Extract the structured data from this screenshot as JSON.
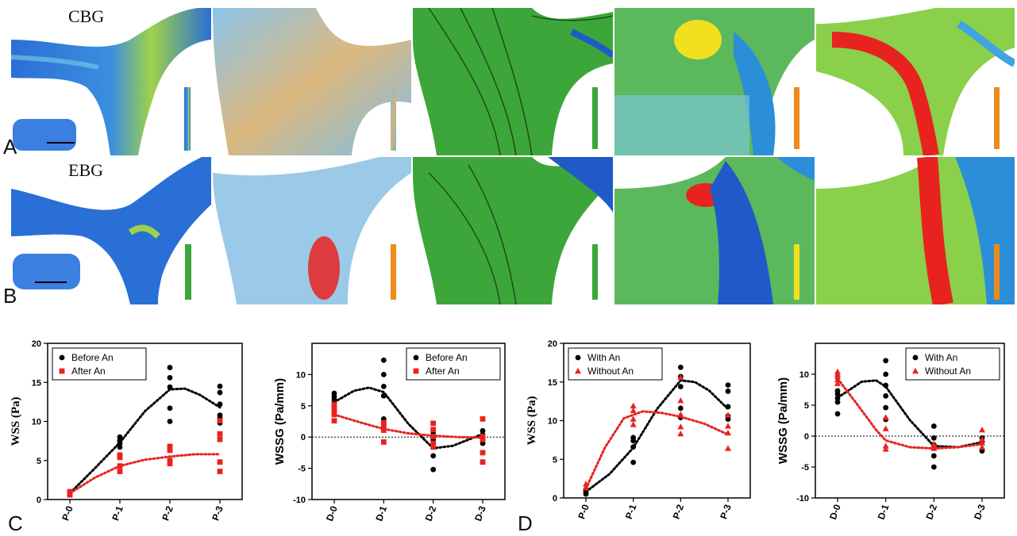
{
  "figure": {
    "panel_labels": [
      "A",
      "B",
      "C",
      "D"
    ],
    "group_titles": [
      "CBG",
      "EBG"
    ],
    "colors": {
      "black": "#000000",
      "red": "#e8231f",
      "blue": "#1f5ac8",
      "green": "#3da63a",
      "yellow": "#f0e020",
      "orange": "#f08a1a"
    }
  },
  "chart_data": [
    {
      "type": "scatter",
      "ylabel": "WSS (Pa)",
      "categories": [
        "P-0",
        "P-1",
        "P-2",
        "P-3"
      ],
      "ylim": [
        0,
        20
      ],
      "yticks": [
        0,
        5,
        10,
        15,
        20
      ],
      "legend": "top-left",
      "series": [
        {
          "name": "Before An",
          "color": "#000000",
          "marker": "circle",
          "points": [
            [
              0,
              0.6
            ],
            [
              0,
              0.8
            ],
            [
              0,
              1.0
            ],
            [
              0,
              0.7
            ],
            [
              1,
              6.7
            ],
            [
              1,
              7.2
            ],
            [
              1,
              7.5
            ],
            [
              1,
              8.0
            ],
            [
              1,
              7.6
            ],
            [
              2,
              10.0
            ],
            [
              2,
              11.7
            ],
            [
              2,
              14.4
            ],
            [
              2,
              15.6
            ],
            [
              2,
              16.9
            ],
            [
              3,
              9.8
            ],
            [
              3,
              10.5
            ],
            [
              3,
              10.8
            ],
            [
              3,
              12.2
            ],
            [
              3,
              13.7
            ],
            [
              3,
              14.5
            ]
          ],
          "trend": [
            [
              0,
              0.8
            ],
            [
              0.5,
              4.0
            ],
            [
              1,
              7.3
            ],
            [
              1.5,
              11.3
            ],
            [
              2,
              14.1
            ],
            [
              2.3,
              14.2
            ],
            [
              2.6,
              13.4
            ],
            [
              3,
              11.8
            ]
          ]
        },
        {
          "name": "After An",
          "color": "#e8231f",
          "marker": "square",
          "points": [
            [
              0,
              0.6
            ],
            [
              0,
              0.8
            ],
            [
              0,
              1.0
            ],
            [
              1,
              3.6
            ],
            [
              1,
              4.3
            ],
            [
              1,
              5.4
            ],
            [
              1,
              5.7
            ],
            [
              2,
              4.6
            ],
            [
              2,
              5.0
            ],
            [
              2,
              6.3
            ],
            [
              2,
              6.8
            ],
            [
              3,
              3.6
            ],
            [
              3,
              4.8
            ],
            [
              3,
              7.7
            ],
            [
              3,
              8.4
            ],
            [
              3,
              10.1
            ]
          ],
          "trend": [
            [
              0,
              0.8
            ],
            [
              0.5,
              2.8
            ],
            [
              1,
              4.3
            ],
            [
              1.5,
              5.1
            ],
            [
              2,
              5.5
            ],
            [
              2.5,
              5.8
            ],
            [
              3,
              5.8
            ]
          ]
        }
      ]
    },
    {
      "type": "scatter",
      "ylabel": "WSSG (Pa/mm)",
      "categories": [
        "D-0",
        "D-1",
        "D-2",
        "D-3"
      ],
      "ylim": [
        -10,
        15
      ],
      "yticks": [
        -10,
        -5,
        0,
        5,
        10
      ],
      "zero_line": true,
      "legend": "top-right",
      "series": [
        {
          "name": "Before An",
          "color": "#000000",
          "marker": "circle",
          "points": [
            [
              0,
              5.5
            ],
            [
              0,
              6.0
            ],
            [
              0,
              6.5
            ],
            [
              0,
              7.0
            ],
            [
              0,
              4.9
            ],
            [
              1,
              12.3
            ],
            [
              1,
              10.0
            ],
            [
              1,
              8.1
            ],
            [
              1,
              6.6
            ],
            [
              1,
              2.9
            ],
            [
              1,
              2.2
            ],
            [
              2,
              1.2
            ],
            [
              2,
              0.5
            ],
            [
              2,
              -0.4
            ],
            [
              2,
              -1.2
            ],
            [
              2,
              -3.0
            ],
            [
              2,
              -5.2
            ],
            [
              3,
              1.0
            ],
            [
              3,
              0.4
            ],
            [
              3,
              -0.2
            ],
            [
              3,
              -1.0
            ],
            [
              3,
              -2.5
            ]
          ],
          "trend": [
            [
              0,
              5.6
            ],
            [
              0.4,
              7.4
            ],
            [
              0.7,
              7.9
            ],
            [
              1,
              7.2
            ],
            [
              1.5,
              2.1
            ],
            [
              2,
              -1.8
            ],
            [
              2.4,
              -1.4
            ],
            [
              3,
              0.5
            ]
          ]
        },
        {
          "name": "After An",
          "color": "#e8231f",
          "marker": "square",
          "points": [
            [
              0,
              2.6
            ],
            [
              0,
              3.6
            ],
            [
              0,
              4.3
            ],
            [
              0,
              4.7
            ],
            [
              0,
              5.2
            ],
            [
              1,
              2.3
            ],
            [
              1,
              1.7
            ],
            [
              1,
              1.1
            ],
            [
              1,
              -0.8
            ],
            [
              2,
              2.2
            ],
            [
              2,
              1.2
            ],
            [
              2,
              0.1
            ],
            [
              2,
              -1.0
            ],
            [
              2,
              -1.6
            ],
            [
              3,
              2.9
            ],
            [
              3,
              0.1
            ],
            [
              3,
              -0.4
            ],
            [
              3,
              -2.5
            ],
            [
              3,
              -4.0
            ]
          ],
          "trend": [
            [
              0,
              3.6
            ],
            [
              0.5,
              2.4
            ],
            [
              1,
              1.3
            ],
            [
              1.5,
              0.6
            ],
            [
              2,
              0.2
            ],
            [
              2.5,
              0.0
            ],
            [
              3,
              -0.1
            ]
          ]
        }
      ]
    },
    {
      "type": "scatter",
      "ylabel": "WSS (Pa)",
      "categories": [
        "P-0",
        "P-1",
        "P-2",
        "P-3"
      ],
      "ylim": [
        0,
        20
      ],
      "yticks": [
        0,
        5,
        10,
        15,
        20
      ],
      "legend": "top-left",
      "series": [
        {
          "name": "With An",
          "color": "#000000",
          "marker": "circle",
          "points": [
            [
              0,
              0.5
            ],
            [
              0,
              0.8
            ],
            [
              0,
              1.1
            ],
            [
              1,
              4.6
            ],
            [
              1,
              6.6
            ],
            [
              1,
              7.8
            ],
            [
              1,
              7.4
            ],
            [
              2,
              10.4
            ],
            [
              2,
              11.6
            ],
            [
              2,
              14.4
            ],
            [
              2,
              15.7
            ],
            [
              2,
              16.9
            ],
            [
              3,
              10.2
            ],
            [
              3,
              10.6
            ],
            [
              3,
              11.8
            ],
            [
              3,
              13.8
            ],
            [
              3,
              14.6
            ]
          ],
          "trend": [
            [
              0,
              0.8
            ],
            [
              0.5,
              3.1
            ],
            [
              1,
              6.5
            ],
            [
              1.5,
              11.5
            ],
            [
              2,
              15.2
            ],
            [
              2.3,
              15.0
            ],
            [
              2.6,
              13.9
            ],
            [
              3,
              11.5
            ]
          ]
        },
        {
          "name": "Without An",
          "color": "#e8231f",
          "marker": "triangle",
          "points": [
            [
              0,
              1.3
            ],
            [
              0,
              1.8
            ],
            [
              1,
              9.5
            ],
            [
              1,
              10.2
            ],
            [
              1,
              11.3
            ],
            [
              1,
              11.9
            ],
            [
              2,
              8.3
            ],
            [
              2,
              9.2
            ],
            [
              2,
              10.8
            ],
            [
              2,
              12.6
            ],
            [
              2,
              15.6
            ],
            [
              3,
              6.4
            ],
            [
              3,
              8.4
            ],
            [
              3,
              9.3
            ],
            [
              3,
              10.7
            ]
          ],
          "trend": [
            [
              0,
              1.2
            ],
            [
              0.4,
              6.5
            ],
            [
              0.8,
              10.3
            ],
            [
              1.2,
              11.2
            ],
            [
              1.6,
              11.0
            ],
            [
              2,
              10.5
            ],
            [
              2.5,
              9.6
            ],
            [
              3,
              8.2
            ]
          ]
        }
      ]
    },
    {
      "type": "scatter",
      "ylabel": "WSSG (Pa/mm)",
      "categories": [
        "D-0",
        "D-1",
        "D-2",
        "D-3"
      ],
      "ylim": [
        -10,
        15
      ],
      "yticks": [
        -10,
        -5,
        0,
        5,
        10
      ],
      "zero_line": true,
      "legend": "top-right",
      "series": [
        {
          "name": "With An",
          "color": "#000000",
          "marker": "circle",
          "points": [
            [
              0,
              3.6
            ],
            [
              0,
              5.5
            ],
            [
              0,
              6.1
            ],
            [
              0,
              6.8
            ],
            [
              0,
              7.3
            ],
            [
              1,
              12.2
            ],
            [
              1,
              10.0
            ],
            [
              1,
              8.2
            ],
            [
              1,
              6.5
            ],
            [
              1,
              4.6
            ],
            [
              1,
              2.7
            ],
            [
              2,
              1.6
            ],
            [
              2,
              -0.3
            ],
            [
              2,
              -1.4
            ],
            [
              2,
              -3.2
            ],
            [
              2,
              -5.0
            ],
            [
              3,
              -0.3
            ],
            [
              3,
              -0.9
            ],
            [
              3,
              -2.4
            ]
          ],
          "trend": [
            [
              0,
              6.2
            ],
            [
              0.5,
              8.8
            ],
            [
              0.8,
              9.0
            ],
            [
              1,
              8.0
            ],
            [
              1.5,
              2.6
            ],
            [
              2,
              -1.6
            ],
            [
              2.5,
              -1.8
            ],
            [
              3,
              -1.0
            ]
          ]
        },
        {
          "name": "Without An",
          "color": "#e8231f",
          "marker": "triangle",
          "points": [
            [
              0,
              10.4
            ],
            [
              0,
              10.0
            ],
            [
              0,
              9.6
            ],
            [
              0,
              9.1
            ],
            [
              0,
              8.5
            ],
            [
              1,
              3.0
            ],
            [
              1,
              1.2
            ],
            [
              1,
              -1.6
            ],
            [
              1,
              -2.1
            ],
            [
              2,
              -1.3
            ],
            [
              2,
              -1.6
            ],
            [
              2,
              -2.0
            ],
            [
              3,
              1.0
            ],
            [
              3,
              -0.5
            ],
            [
              3,
              -1.1
            ],
            [
              3,
              -1.8
            ]
          ],
          "trend": [
            [
              0,
              9.3
            ],
            [
              0.4,
              5.2
            ],
            [
              0.8,
              1.0
            ],
            [
              1,
              -0.7
            ],
            [
              1.5,
              -1.8
            ],
            [
              2,
              -2.0
            ],
            [
              2.5,
              -1.8
            ],
            [
              3,
              -1.3
            ]
          ]
        }
      ]
    }
  ]
}
